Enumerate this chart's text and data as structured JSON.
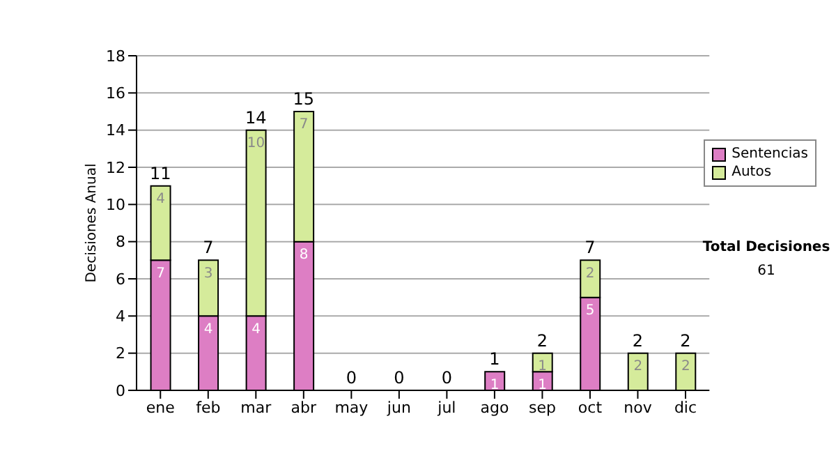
{
  "chart_data": {
    "type": "bar",
    "ylabel": "Decisiones Anual",
    "stacked": true,
    "categories": [
      "ene",
      "feb",
      "mar",
      "abr",
      "may",
      "jun",
      "jul",
      "ago",
      "sep",
      "oct",
      "nov",
      "dic"
    ],
    "series": [
      {
        "name": "Sentencias",
        "color": "#dd7ec4",
        "values": [
          7,
          4,
          4,
          8,
          0,
          0,
          0,
          1,
          1,
          5,
          0,
          0
        ],
        "value_labels": [
          "7",
          "4",
          "4",
          "8",
          null,
          null,
          null,
          "1",
          "1",
          "5",
          null,
          null
        ]
      },
      {
        "name": "Autos",
        "color": "#d5eb9b",
        "values": [
          4,
          3,
          10,
          7,
          0,
          0,
          0,
          0,
          1,
          2,
          2,
          2
        ],
        "value_labels": [
          "4",
          "3",
          "10",
          "7",
          null,
          null,
          null,
          null,
          "1",
          "2",
          "2",
          "2"
        ]
      }
    ],
    "totals": [
      "11",
      "7",
      "14",
      "15",
      "0",
      "0",
      "0",
      "1",
      "2",
      "7",
      "2",
      "2"
    ],
    "ylim": [
      0,
      18
    ],
    "yticks": [
      0,
      2,
      4,
      6,
      8,
      10,
      12,
      14,
      16,
      18
    ],
    "grid": "y",
    "legend": "right",
    "annotations": [
      "Total Decisiones",
      "61"
    ]
  }
}
